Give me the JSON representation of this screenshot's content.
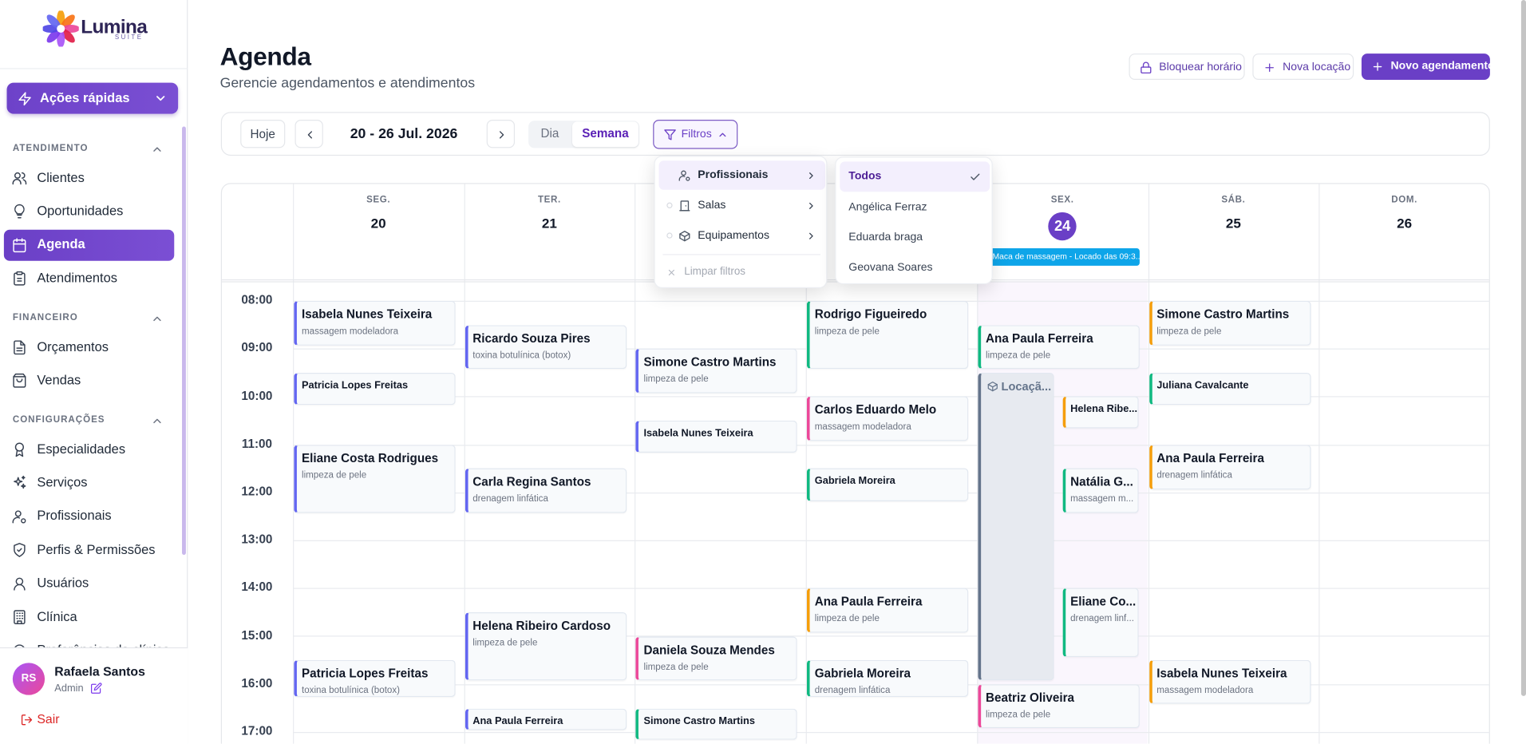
{
  "sidebar": {
    "brand": "Lumina",
    "brand_sub": "SUITE",
    "quick_actions": "Ações rápidas",
    "sections": [
      {
        "title": "ATENDIMENTO",
        "items": [
          "Clientes",
          "Oportunidades",
          "Agenda",
          "Atendimentos"
        ]
      },
      {
        "title": "FINANCEIRO",
        "items": [
          "Orçamentos",
          "Vendas"
        ]
      },
      {
        "title": "CONFIGURAÇÕES",
        "items": [
          "Especialidades",
          "Serviços",
          "Profissionais",
          "Perfis & Permissões",
          "Usuários",
          "Clínica",
          "Preferências da clínica"
        ]
      }
    ],
    "active_item": [
      0,
      2
    ],
    "user": {
      "initials": "RS",
      "name": "Rafaela Santos",
      "role": "Admin"
    },
    "logout": "Sair"
  },
  "header": {
    "title": "Agenda",
    "subtitle": "Gerencie agendamentos e atendimentos",
    "actions": [
      "Bloquear horário",
      "Nova locação",
      "Novo agendamento"
    ]
  },
  "toolbar": {
    "today": "Hoje",
    "range": "20 - 26 Jul. 2026",
    "views": [
      "Dia",
      "Semana"
    ],
    "active_view": 1,
    "filters": "Filtros"
  },
  "filter_menu": {
    "items": [
      "Profissionais",
      "Salas",
      "Equipamentos"
    ],
    "active": 0,
    "clear": "Limpar filtros"
  },
  "professionals_menu": {
    "items": [
      "Todos",
      "Angélica Ferraz",
      "Eduarda braga",
      "Geovana Soares"
    ],
    "selected": 0
  },
  "calendar": {
    "days": [
      {
        "weekday": "SEG.",
        "date": 20
      },
      {
        "weekday": "TER.",
        "date": 21
      },
      null,
      null,
      {
        "weekday": "SEX.",
        "date": 24
      },
      {
        "weekday": "SÁB.",
        "date": 25
      },
      {
        "weekday": "DOM.",
        "date": 26
      }
    ],
    "today": 4,
    "all_day": [
      {
        "day": 4,
        "text": "Maca de massagem - Locado das 09:3...",
        "color": "#0ea5e9"
      }
    ],
    "hours": [
      "08:00",
      "09:00",
      "10:00",
      "11:00",
      "12:00",
      "13:00",
      "14:00",
      "15:00",
      "16:00",
      "17:00"
    ],
    "events": [
      {
        "day": 0,
        "name": "Isabela Nunes Teixeira",
        "service": "massagem modeladora",
        "color": "#6366f1"
      },
      {
        "day": 0,
        "name": "Patricia Lopes Freitas",
        "color": "#6366f1"
      },
      {
        "day": 0,
        "name": "Eliane Costa Rodrigues",
        "service": "limpeza de pele",
        "color": "#6366f1"
      },
      {
        "day": 0,
        "name": "Patricia Lopes Freitas",
        "service": "toxina botulínica (botox)",
        "color": "#6366f1"
      },
      {
        "day": 1,
        "name": "Ricardo Souza Pires",
        "service": "toxina botulínica (botox)",
        "color": "#6366f1"
      },
      {
        "day": 1,
        "name": "Carla Regina Santos",
        "service": "drenagem linfática",
        "color": "#6366f1"
      },
      {
        "day": 1,
        "name": "Helena Ribeiro Cardoso",
        "service": "limpeza de pele",
        "color": "#6366f1"
      },
      {
        "day": 1,
        "name": "Ana Paula Ferreira",
        "color": "#6366f1"
      },
      {
        "day": 2,
        "name": "Simone Castro Martins",
        "service": "limpeza de pele",
        "color": "#6366f1"
      },
      {
        "day": 2,
        "name": "Isabela Nunes Teixeira",
        "color": "#6366f1"
      },
      {
        "day": 2,
        "name": "Daniela Souza Mendes",
        "service": "limpeza de pele",
        "color": "#ec4899"
      },
      {
        "day": 2,
        "name": "Simone Castro Martins",
        "color": "#10b981"
      },
      {
        "day": 3,
        "name": "Rodrigo Figueiredo",
        "service": "limpeza de pele",
        "color": "#10b981"
      },
      {
        "day": 3,
        "name": "Carlos Eduardo Melo",
        "service": "massagem modeladora",
        "color": "#ec4899"
      },
      {
        "day": 3,
        "name": "Gabriela Moreira",
        "color": "#10b981"
      },
      {
        "day": 3,
        "name": "Ana Paula Ferreira",
        "service": "limpeza de pele",
        "color": "#f59e0b"
      },
      {
        "day": 3,
        "name": "Gabriela Moreira",
        "service": "drenagem linfática",
        "color": "#10b981"
      },
      {
        "day": 4,
        "name": "Ana Paula Ferreira",
        "service": "limpeza de pele",
        "color": "#10b981"
      },
      {
        "day": 4,
        "name": "Locaçã...",
        "color": "#64748b",
        "rental": true
      },
      {
        "day": 4,
        "name": "Helena Ribe...",
        "color": "#f59e0b"
      },
      {
        "day": 4,
        "name": "Natália G...",
        "service": "massagem m...",
        "color": "#10b981"
      },
      {
        "day": 4,
        "name": "Eliane Co...",
        "service": "drenagem linf...",
        "color": "#10b981"
      },
      {
        "day": 4,
        "name": "Beatriz Oliveira",
        "service": "limpeza de pele",
        "color": "#ec4899"
      },
      {
        "day": 5,
        "name": "Simone Castro Martins",
        "service": "limpeza de pele",
        "color": "#f59e0b"
      },
      {
        "day": 5,
        "name": "Juliana Cavalcante",
        "color": "#10b981"
      },
      {
        "day": 5,
        "name": "Ana Paula Ferreira",
        "service": "drenagem linfática",
        "color": "#f59e0b"
      },
      {
        "day": 5,
        "name": "Isabela Nunes Teixeira",
        "service": "massagem modeladora",
        "color": "#f59e0b"
      }
    ]
  }
}
